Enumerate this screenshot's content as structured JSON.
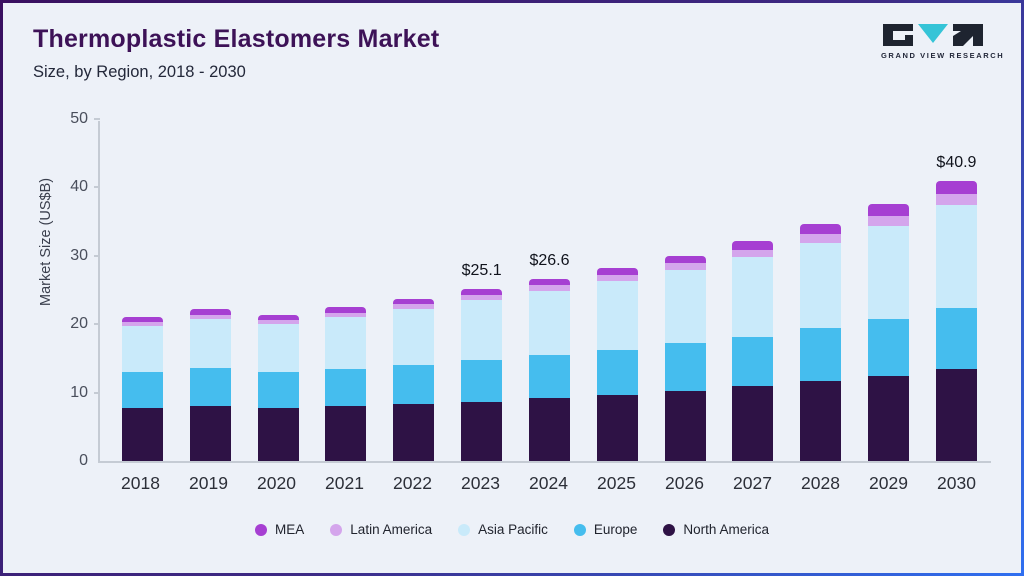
{
  "header": {
    "title": "Thermoplastic Elastomers Market",
    "subtitle": "Size, by Region, 2018 - 2030",
    "logo_text": "GRAND VIEW RESEARCH"
  },
  "chart_data": {
    "type": "bar",
    "stacked": true,
    "title": "Thermoplastic Elastomers Market Size, by Region, 2018 - 2030",
    "xlabel": "",
    "ylabel": "Market Size (US$B)",
    "ylim": [
      0,
      50
    ],
    "yticks": [
      0,
      10,
      20,
      30,
      40,
      50
    ],
    "grid": false,
    "legend_position": "bottom",
    "categories": [
      "2018",
      "2019",
      "2020",
      "2021",
      "2022",
      "2023",
      "2024",
      "2025",
      "2026",
      "2027",
      "2028",
      "2029",
      "2030"
    ],
    "series": [
      {
        "name": "North America",
        "color": "#2e1245",
        "values": [
          7.7,
          8.0,
          7.8,
          8.1,
          8.4,
          8.7,
          9.2,
          9.7,
          10.3,
          10.9,
          11.7,
          12.5,
          13.5
        ]
      },
      {
        "name": "Europe",
        "color": "#45bdee",
        "values": [
          5.3,
          5.6,
          5.2,
          5.4,
          5.7,
          6.0,
          6.3,
          6.6,
          6.9,
          7.3,
          7.7,
          8.3,
          8.8
        ]
      },
      {
        "name": "Asia Pacific",
        "color": "#c9eafa",
        "values": [
          6.7,
          7.1,
          7.0,
          7.5,
          8.1,
          8.8,
          9.3,
          10.0,
          10.7,
          11.6,
          12.5,
          13.5,
          15.1
        ]
      },
      {
        "name": "Latin America",
        "color": "#d4a5ec",
        "values": [
          0.6,
          0.7,
          0.6,
          0.7,
          0.7,
          0.8,
          0.9,
          0.9,
          1.0,
          1.1,
          1.3,
          1.5,
          1.7
        ]
      },
      {
        "name": "MEA",
        "color": "#a63fd2",
        "values": [
          0.7,
          0.8,
          0.8,
          0.8,
          0.8,
          0.8,
          0.9,
          1.0,
          1.1,
          1.3,
          1.5,
          1.8,
          1.8
        ]
      }
    ],
    "annotations": [
      {
        "category": "2023",
        "label": "$25.1"
      },
      {
        "category": "2024",
        "label": "$26.6"
      },
      {
        "category": "2030",
        "label": "$40.9"
      }
    ],
    "legend": [
      {
        "name": "MEA",
        "color": "#a63fd2"
      },
      {
        "name": "Latin America",
        "color": "#d4a5ec"
      },
      {
        "name": "Asia Pacific",
        "color": "#c9eafa"
      },
      {
        "name": "Europe",
        "color": "#45bdee"
      },
      {
        "name": "North America",
        "color": "#2e1245"
      }
    ]
  }
}
